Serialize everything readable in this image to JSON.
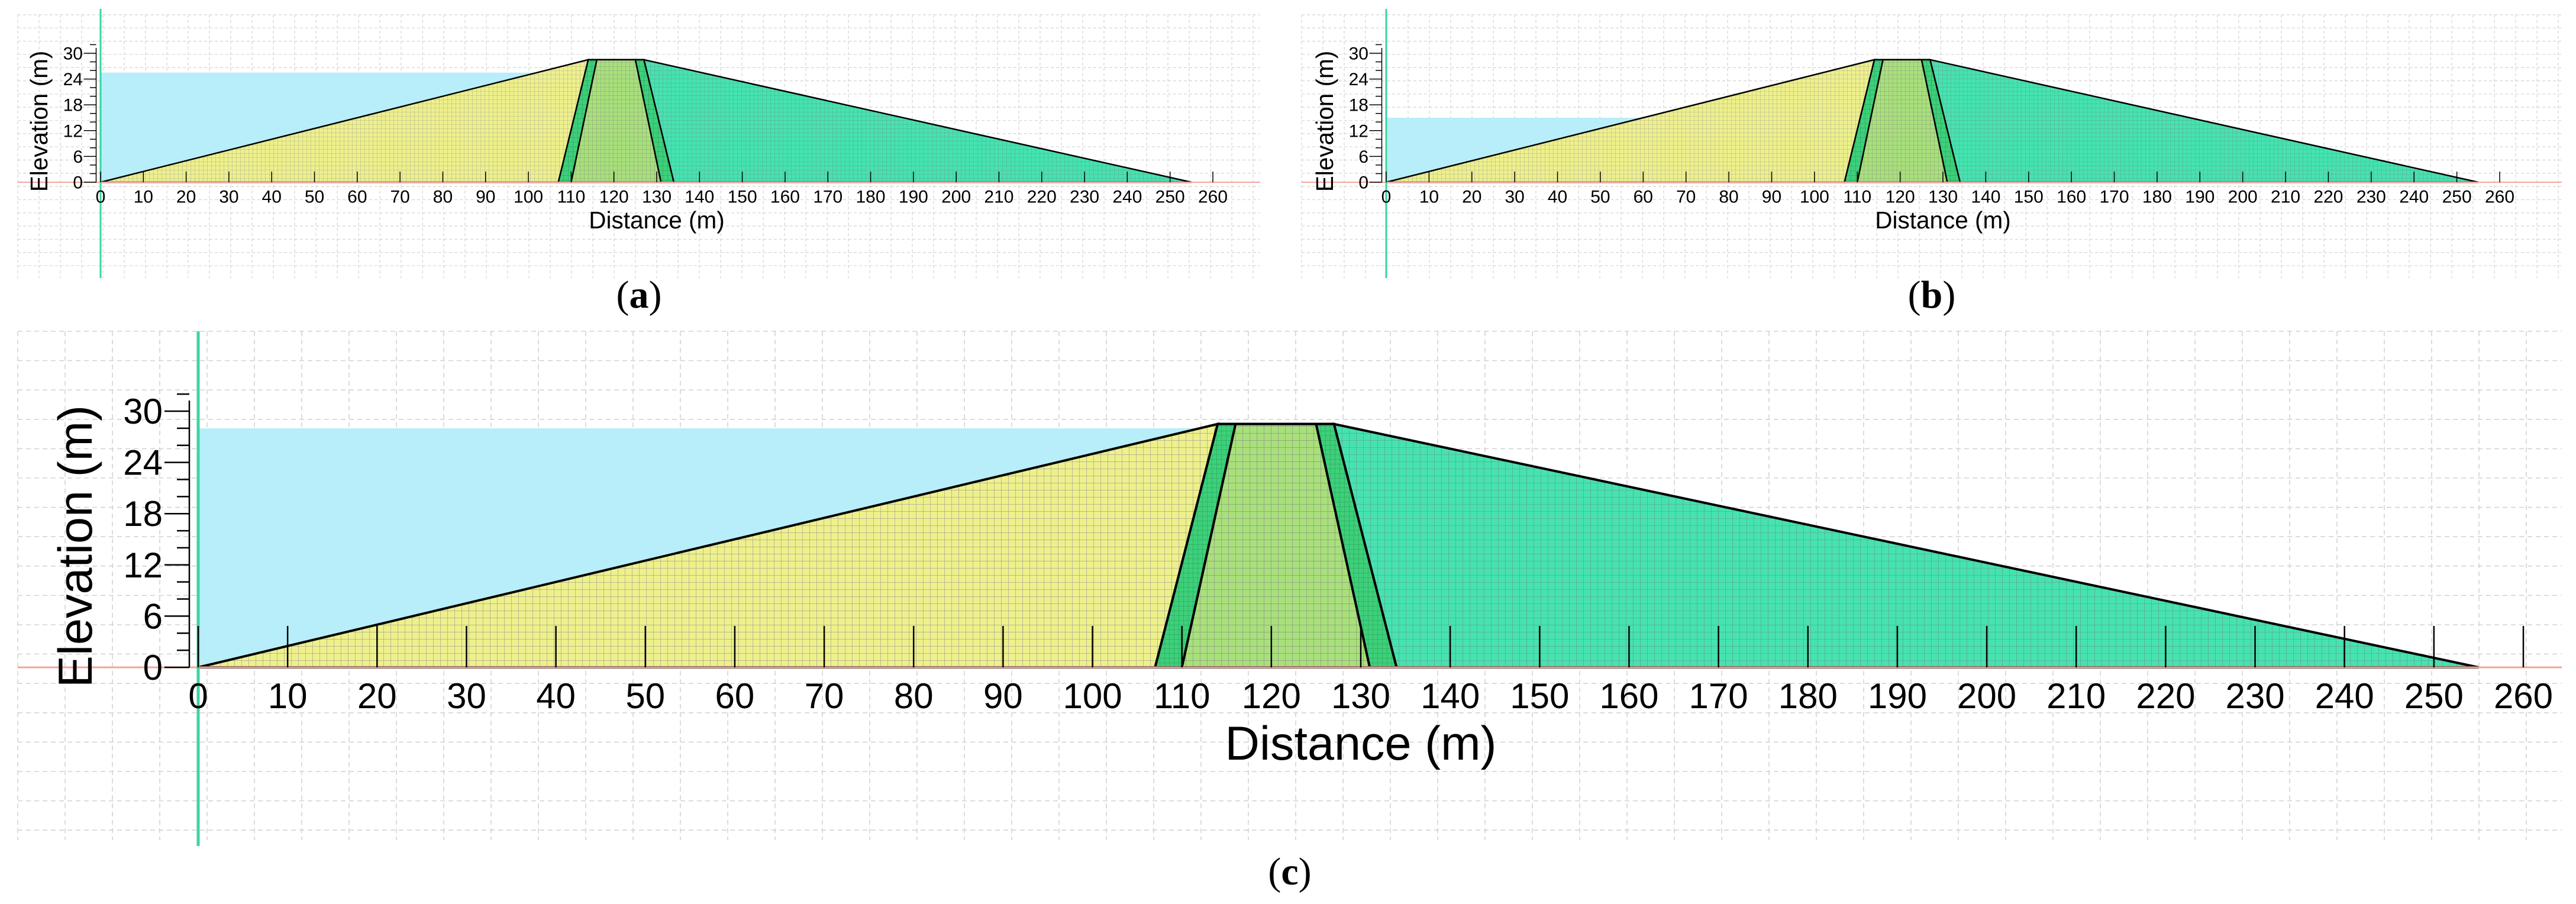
{
  "figure": {
    "panels": [
      {
        "id": "a",
        "caption_letter": "a",
        "xlabel": "Distance (m)",
        "ylabel": "Elevation (m)",
        "water_level_m": 25.5,
        "x_ticks": [
          0,
          10,
          20,
          30,
          40,
          50,
          60,
          70,
          80,
          90,
          100,
          110,
          120,
          130,
          140,
          150,
          160,
          170,
          180,
          190,
          200,
          210,
          220,
          230,
          240,
          250,
          260
        ],
        "y_ticks": [
          0,
          6,
          12,
          18,
          24,
          30
        ]
      },
      {
        "id": "b",
        "caption_letter": "b",
        "xlabel": "Distance (m)",
        "ylabel": "Elevation (m)",
        "water_level_m": 15,
        "x_ticks": [
          0,
          10,
          20,
          30,
          40,
          50,
          60,
          70,
          80,
          90,
          100,
          110,
          120,
          130,
          140,
          150,
          160,
          170,
          180,
          190,
          200,
          210,
          220,
          230,
          240,
          250,
          260
        ],
        "y_ticks": [
          0,
          6,
          12,
          18,
          24,
          30
        ]
      },
      {
        "id": "c",
        "caption_letter": "c",
        "xlabel": "Distance (m)",
        "ylabel": "Elevation (m)",
        "water_level_m": 28,
        "x_ticks": [
          0,
          10,
          20,
          30,
          40,
          50,
          60,
          70,
          80,
          90,
          100,
          110,
          120,
          130,
          140,
          150,
          160,
          170,
          180,
          190,
          200,
          210,
          220,
          230,
          240,
          250,
          260
        ],
        "y_ticks": [
          0,
          6,
          12,
          18,
          24,
          30
        ]
      }
    ],
    "dam_geometry_m": {
      "upstream_toe": [
        0,
        0
      ],
      "upstream_crest": [
        114,
        28.5
      ],
      "downstream_crest": [
        126,
        28.5
      ],
      "downstream_toe": [
        255,
        0
      ],
      "core_bottom_left": 110,
      "core_bottom_right": 131,
      "core_top_left": 116,
      "core_top_right": 125,
      "filter_bottom_left": 107,
      "filter_bottom_right": 134,
      "filter_top_left": 114,
      "filter_top_right": 127
    },
    "colors": {
      "water": "#b8eef9",
      "upstream_shell": "#eef08a",
      "core": "#a8e07a",
      "filter": "#3dd07a",
      "downstream_shell": "#45e3b0",
      "mesh_line": "#9a9a9a",
      "ground_line": "#f4a49a",
      "y_axis_line": "#38d6a0",
      "grid": "#d4d4d4",
      "outline": "#000000"
    }
  }
}
